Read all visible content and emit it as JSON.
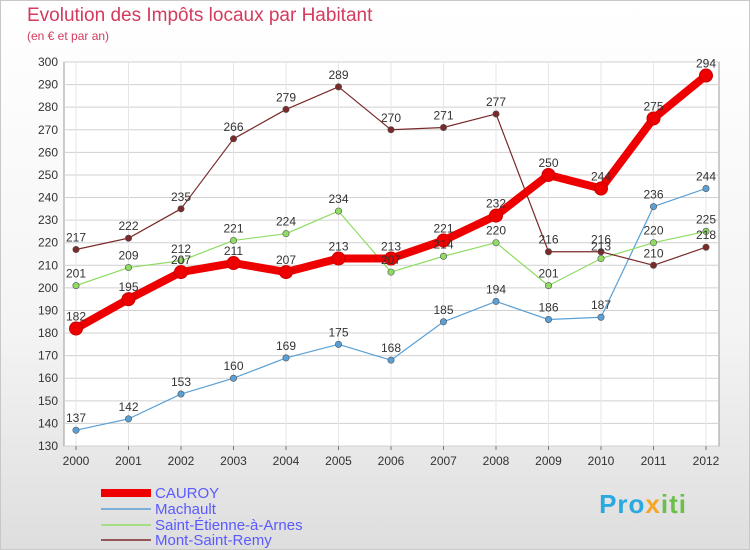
{
  "chart_data": {
    "type": "line",
    "title": "Evolution des Impôts locaux par Habitant",
    "subtitle": "(en € et par an)",
    "xlabel": "",
    "ylabel": "",
    "categories": [
      "2000",
      "2001",
      "2002",
      "2003",
      "2004",
      "2005",
      "2006",
      "2007",
      "2008",
      "2009",
      "2010",
      "2011",
      "2012"
    ],
    "ylim": [
      130,
      300
    ],
    "yticks": [
      130,
      140,
      150,
      160,
      170,
      180,
      190,
      200,
      210,
      220,
      230,
      240,
      250,
      260,
      270,
      280,
      290,
      300
    ],
    "grid": true,
    "series": [
      {
        "name": "CAUROY",
        "color": "#ee0000",
        "values": [
          182,
          195,
          207,
          211,
          207,
          213,
          213,
          221,
          232,
          250,
          244,
          275,
          294
        ]
      },
      {
        "name": "Machault",
        "color": "#5aa0d6",
        "values": [
          137,
          142,
          153,
          160,
          169,
          175,
          168,
          185,
          194,
          186,
          187,
          236,
          244
        ]
      },
      {
        "name": "Saint-Étienne-à-Arnes",
        "color": "#8fdc62",
        "values": [
          201,
          209,
          212,
          221,
          224,
          234,
          207,
          214,
          220,
          201,
          213,
          220,
          225
        ]
      },
      {
        "name": "Mont-Saint-Remy",
        "color": "#7a2a2a",
        "values": [
          217,
          222,
          235,
          266,
          279,
          289,
          270,
          271,
          277,
          216,
          216,
          210,
          218
        ]
      }
    ],
    "data_labels": [
      [
        "182",
        "195",
        "207",
        "211",
        "207",
        "213",
        "213",
        "221",
        "232",
        "250",
        "244",
        "275",
        "294"
      ],
      [
        "137",
        "142",
        "153",
        "160",
        "169",
        "175",
        "168",
        "185",
        "194",
        "186",
        "187",
        "236",
        "244"
      ],
      [
        "201",
        "209",
        "212",
        "221",
        "224",
        "234",
        "207",
        "214",
        "220",
        "201",
        "213",
        "220",
        "225"
      ],
      [
        "217",
        "222",
        "235",
        "266",
        "279",
        "289",
        "270",
        "271",
        "277",
        "216",
        "216",
        "210",
        "218"
      ]
    ]
  },
  "logo": {
    "part1": "Pro",
    "part2": "x",
    "part3": "iti"
  }
}
